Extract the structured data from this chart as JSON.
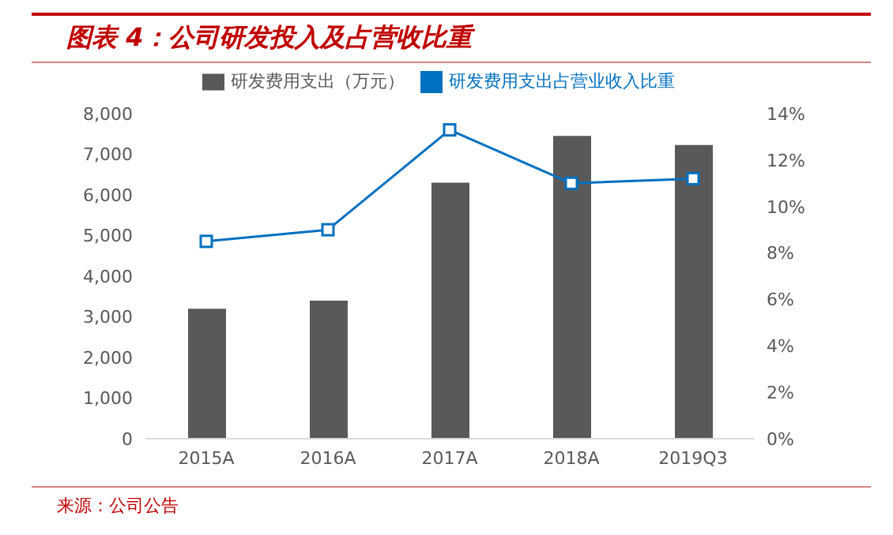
{
  "chart_data": {
    "type": "bar",
    "title": "图表 4：公司研发投入及占营收比重",
    "categories": [
      "2015A",
      "2016A",
      "2017A",
      "2018A",
      "2019Q3"
    ],
    "series": [
      {
        "name": "研发费用支出（万元）",
        "color": "#595959",
        "values": [
          3200,
          3400,
          6300,
          7450,
          7230
        ]
      },
      {
        "name": "研发费用支出占营业收入比重",
        "type": "line",
        "axis": "y2",
        "color": "#0070c0",
        "marker": "square",
        "values": [
          8.5,
          9.0,
          13.3,
          11.0,
          11.2
        ]
      }
    ],
    "ylim": [
      0,
      8000
    ],
    "yticks": [
      0,
      {
        "value": 1000,
        "label": "1,000"
      },
      {
        "value": 2000,
        "label": "2,000"
      },
      {
        "value": 3000,
        "label": "3,000"
      },
      {
        "value": 4000,
        "label": "4,000"
      },
      {
        "value": 5000,
        "label": "5,000"
      },
      {
        "value": 6000,
        "label": "6,000"
      },
      {
        "value": 7000,
        "label": "7,000"
      },
      {
        "value": 8000,
        "label": "8,000"
      }
    ],
    "y2lim": [
      0,
      14
    ],
    "y2ticks": [
      {
        "value": 0,
        "label": "0%"
      },
      {
        "value": 2,
        "label": "2%"
      },
      {
        "value": 4,
        "label": "4%"
      },
      {
        "value": 6,
        "label": "6%"
      },
      {
        "value": 8,
        "label": "8%"
      },
      {
        "value": 10,
        "label": "10%"
      },
      {
        "value": 12,
        "label": "12%"
      },
      {
        "value": 14,
        "label": "14%"
      }
    ],
    "grid": false,
    "legend": "top",
    "annotations": [
      "来源：公司公告"
    ]
  }
}
